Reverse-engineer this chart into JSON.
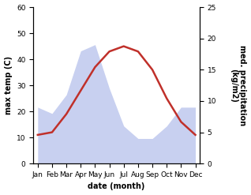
{
  "months": [
    "Jan",
    "Feb",
    "Mar",
    "Apr",
    "May",
    "Jun",
    "Jul",
    "Aug",
    "Sep",
    "Oct",
    "Nov",
    "Dec"
  ],
  "month_x": [
    0,
    1,
    2,
    3,
    4,
    5,
    6,
    7,
    8,
    9,
    10,
    11
  ],
  "temperature": [
    11,
    12,
    19,
    28,
    37,
    43,
    45,
    43,
    36,
    25,
    16,
    11
  ],
  "precip_raw": [
    9,
    8,
    11,
    18,
    19,
    12,
    6,
    4,
    4,
    6,
    9,
    9
  ],
  "precip_fill_color": "#c8d0f0",
  "temp_color": "#c0302a",
  "temp_ylim": [
    0,
    60
  ],
  "precip_ylim": [
    0,
    25
  ],
  "temp_yticks": [
    0,
    10,
    20,
    30,
    40,
    50,
    60
  ],
  "precip_yticks": [
    0,
    5,
    10,
    15,
    20,
    25
  ],
  "ylabel_left": "max temp (C)",
  "ylabel_right": "med. precipitation\n(kg/m2)",
  "xlabel": "date (month)",
  "xlabel_fontweight": "bold",
  "ylabel_fontweight": "bold",
  "label_fontsize": 7,
  "tick_fontsize": 6.5
}
